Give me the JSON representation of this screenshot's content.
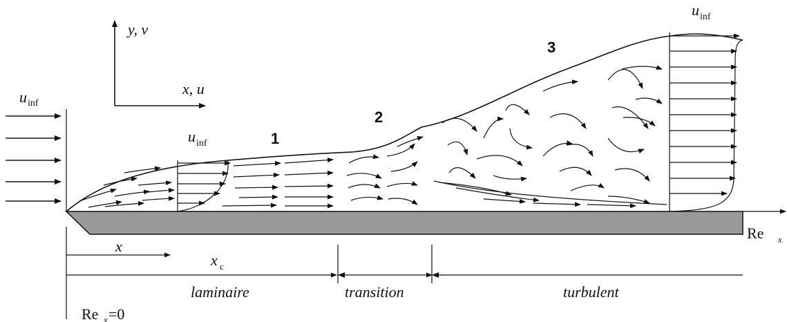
{
  "axes": {
    "vertical_label": "y, v",
    "horizontal_label": "x, u"
  },
  "freestream": {
    "left_label": "u",
    "left_sub": "inf",
    "laminar_label": "u",
    "laminar_sub": "inf",
    "right_label": "u",
    "right_sub": "inf"
  },
  "regions": {
    "one": "1",
    "two": "2",
    "three": "3"
  },
  "plate": {
    "fill_color": "#9a9a9a",
    "axis_label": "Re",
    "axis_sub": "x"
  },
  "dimensions": {
    "x_label": "x",
    "xc_label": "x",
    "xc_sub": "c",
    "laminar": "laminaire",
    "transition": "transition",
    "turbulent": "turbulent",
    "origin_label": "Re",
    "origin_sub": "x",
    "origin_value": "=0"
  }
}
